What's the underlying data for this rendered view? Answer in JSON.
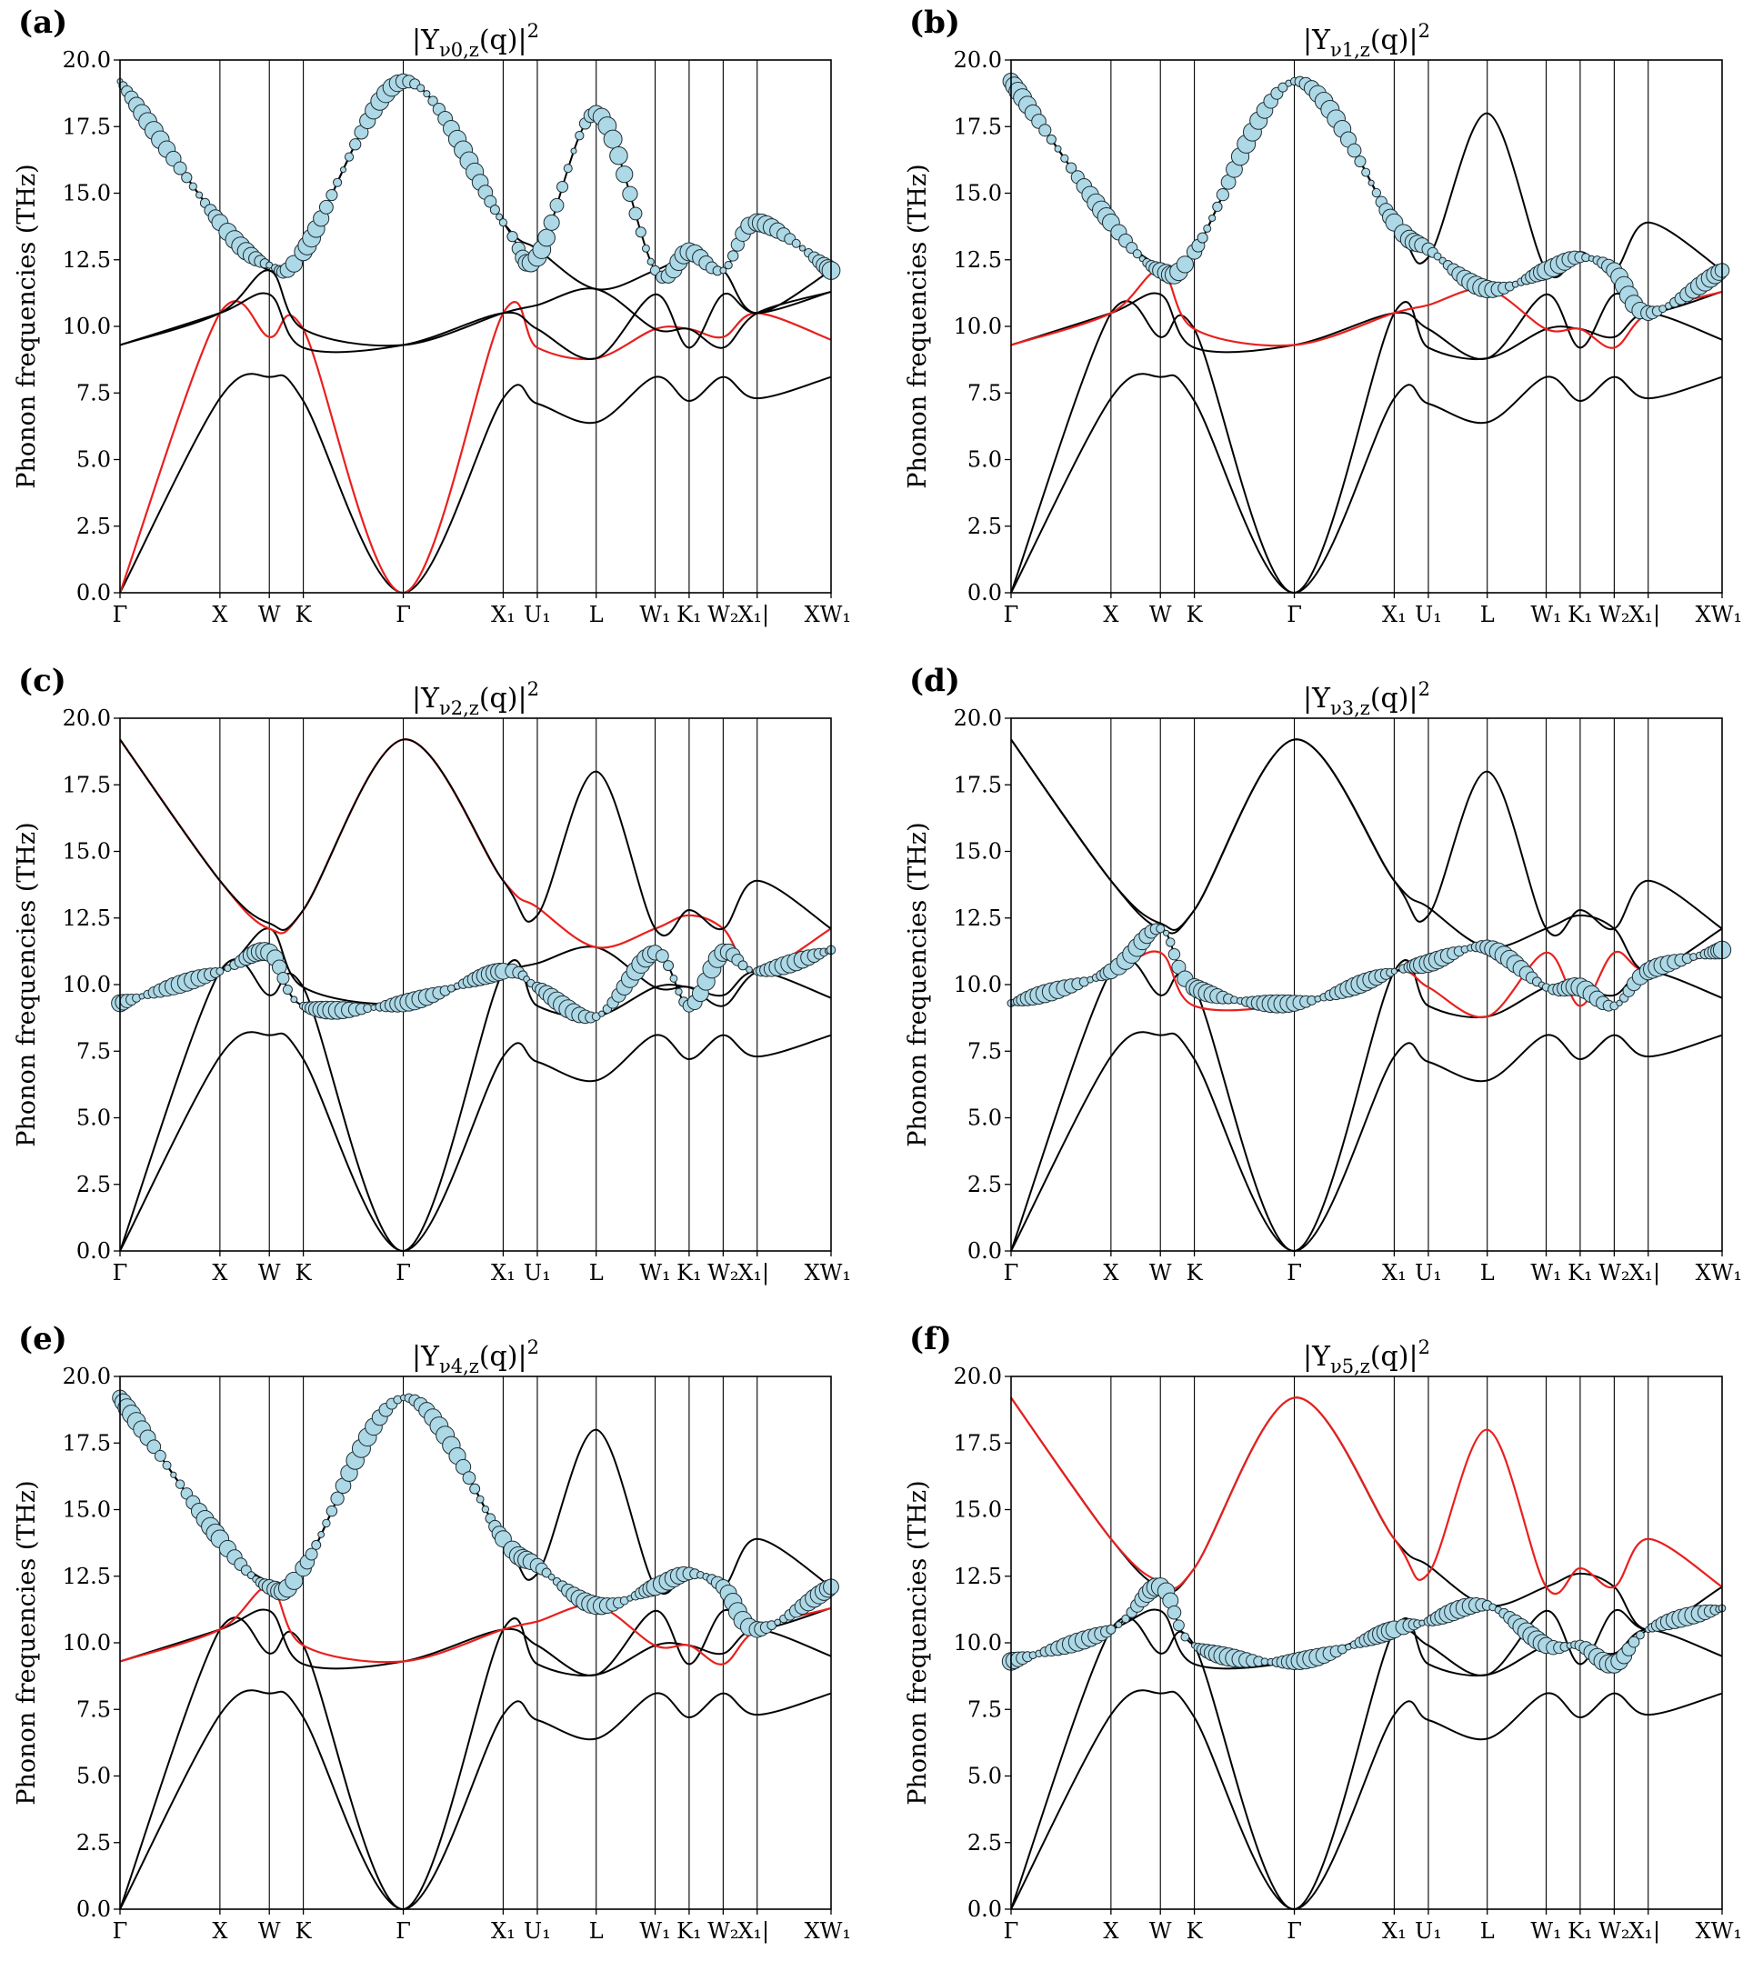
{
  "colors": {
    "line": "#000000",
    "highlight": "#e8201e",
    "bubble_fill": "#add8e6",
    "bubble_edge": "#1f2d33"
  },
  "chart_data": [
    {
      "type": "line",
      "panel": "(a)",
      "title": "|Y_{ν0,z}(q)|²",
      "title_parts": {
        "pre": "|Y",
        "sub": "ν0,z",
        "mid": "(q)|",
        "sup": "2"
      },
      "ylabel": "Phonon frequencies (THz)",
      "ylim": [
        0,
        20
      ],
      "yticks": [
        "0.0",
        "2.5",
        "5.0",
        "7.5",
        "10.0",
        "12.5",
        "15.0",
        "17.5",
        "20.0"
      ],
      "xticks": [
        "Γ",
        "X",
        "W",
        "K",
        "Γ",
        "X₁",
        "U₁",
        "L",
        "W₁",
        "K₁",
        "W₂",
        "X₁|",
        "XW₁"
      ],
      "highlight_band": 1,
      "bubble_band": 5
    },
    {
      "type": "line",
      "panel": "(b)",
      "title": "|Y_{ν1,z}(q)|²",
      "title_parts": {
        "pre": "|Y",
        "sub": "ν1,z",
        "mid": "(q)|",
        "sup": "2"
      },
      "ylabel": "Phonon frequencies (THz)",
      "ylim": [
        0,
        20
      ],
      "yticks": [
        "0.0",
        "2.5",
        "5.0",
        "7.5",
        "10.0",
        "12.5",
        "15.0",
        "17.5",
        "20.0"
      ],
      "xticks": [
        "Γ",
        "X",
        "W",
        "K",
        "Γ",
        "X₁",
        "U₁",
        "L",
        "W₁",
        "K₁",
        "W₂",
        "X₁|",
        "XW₁"
      ],
      "highlight_band": 3,
      "bubble_band": 4
    },
    {
      "type": "line",
      "panel": "(c)",
      "title": "|Y_{ν2,z}(q)|²",
      "title_parts": {
        "pre": "|Y",
        "sub": "ν2,z",
        "mid": "(q)|",
        "sup": "2"
      },
      "ylabel": "Phonon frequencies (THz)",
      "ylim": [
        0,
        20
      ],
      "yticks": [
        "0.0",
        "2.5",
        "5.0",
        "7.5",
        "10.0",
        "12.5",
        "15.0",
        "17.5",
        "20.0"
      ],
      "xticks": [
        "Γ",
        "X",
        "W",
        "K",
        "Γ",
        "X₁",
        "U₁",
        "L",
        "W₁",
        "K₁",
        "W₂",
        "X₁|",
        "XW₁"
      ],
      "highlight_band": 4,
      "bubble_band": 2
    },
    {
      "type": "line",
      "panel": "(d)",
      "title": "|Y_{ν3,z}(q)|²",
      "title_parts": {
        "pre": "|Y",
        "sub": "ν3,z",
        "mid": "(q)|",
        "sup": "2"
      },
      "ylabel": "Phonon frequencies (THz)",
      "ylim": [
        0,
        20
      ],
      "yticks": [
        "0.0",
        "2.5",
        "5.0",
        "7.5",
        "10.0",
        "12.5",
        "15.0",
        "17.5",
        "20.0"
      ],
      "xticks": [
        "Γ",
        "X",
        "W",
        "K",
        "Γ",
        "X₁",
        "U₁",
        "L",
        "W₁",
        "K₁",
        "W₂",
        "X₁|",
        "XW₁"
      ],
      "highlight_band": 2,
      "bubble_band": 3
    },
    {
      "type": "line",
      "panel": "(e)",
      "title": "|Y_{ν4,z}(q)|²",
      "title_parts": {
        "pre": "|Y",
        "sub": "ν4,z",
        "mid": "(q)|",
        "sup": "2"
      },
      "ylabel": "Phonon frequencies (THz)",
      "ylim": [
        0,
        20
      ],
      "yticks": [
        "0.0",
        "2.5",
        "5.0",
        "7.5",
        "10.0",
        "12.5",
        "15.0",
        "17.5",
        "20.0"
      ],
      "xticks": [
        "Γ",
        "X",
        "W",
        "K",
        "Γ",
        "X₁",
        "U₁",
        "L",
        "W₁",
        "K₁",
        "W₂",
        "X₁|",
        "XW₁"
      ],
      "highlight_band": 3,
      "bubble_band": 4
    },
    {
      "type": "line",
      "panel": "(f)",
      "title": "|Y_{ν5,z}(q)|²",
      "title_parts": {
        "pre": "|Y",
        "sub": "ν5,z",
        "mid": "(q)|",
        "sup": "2"
      },
      "ylabel": "Phonon frequencies (THz)",
      "ylim": [
        0,
        20
      ],
      "yticks": [
        "0.0",
        "2.5",
        "5.0",
        "7.5",
        "10.0",
        "12.5",
        "15.0",
        "17.5",
        "20.0"
      ],
      "xticks": [
        "Γ",
        "X",
        "W",
        "K",
        "Γ",
        "X₁",
        "U₁",
        "L",
        "W₁",
        "K₁",
        "W₂",
        "X₁|",
        "XW₁"
      ],
      "highlight_band": 5,
      "bubble_band": 3
    }
  ],
  "kpath": [
    0,
    0.1405,
    0.21,
    0.2578,
    0.3984,
    0.5389,
    0.5869,
    0.6697,
    0.7526,
    0.8004,
    0.8483,
    0.8961,
    1.0
  ],
  "bands": [
    [
      0,
      7.3,
      8.1,
      7.2,
      0,
      7.3,
      7.1,
      6.4,
      8.1,
      7.2,
      8.1,
      7.3,
      8.1
    ],
    [
      0,
      10.5,
      9.6,
      9.9,
      0,
      10.5,
      9.2,
      8.8,
      9.9,
      9.9,
      9.6,
      10.5,
      9.5
    ],
    [
      9.3,
      10.5,
      11.2,
      9.2,
      9.3,
      10.5,
      9.9,
      8.8,
      11.2,
      9.2,
      11.2,
      10.5,
      11.3
    ],
    [
      9.3,
      10.5,
      12.1,
      9.9,
      9.3,
      10.5,
      10.8,
      11.4,
      9.9,
      9.9,
      9.2,
      10.5,
      11.3
    ],
    [
      19.2,
      13.9,
      12.1,
      12.8,
      19.2,
      13.9,
      12.9,
      11.4,
      12.1,
      12.6,
      12.1,
      10.5,
      12.1
    ],
    [
      19.2,
      13.9,
      12.3,
      12.8,
      19.2,
      13.9,
      12.6,
      18.0,
      12.1,
      12.8,
      12.1,
      13.9,
      12.1
    ]
  ]
}
